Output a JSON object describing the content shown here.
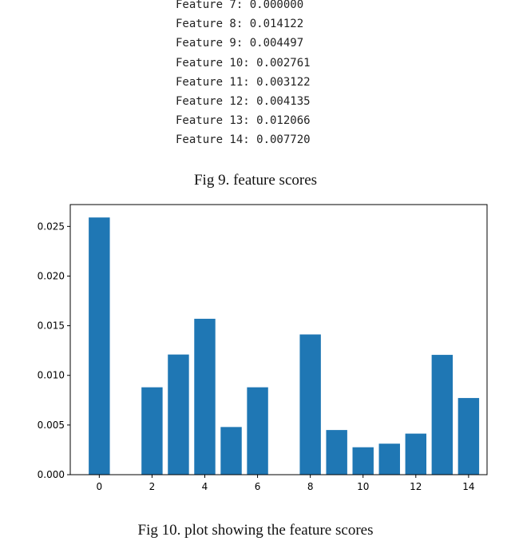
{
  "feature_scores_output": [
    "Feature 7: 0.000000",
    "Feature 8: 0.014122",
    "Feature 9: 0.004497",
    "Feature 10: 0.002761",
    "Feature 11: 0.003122",
    "Feature 12: 0.004135",
    "Feature 13: 0.012066",
    "Feature 14: 0.007720"
  ],
  "captions": {
    "fig9": "Fig 9.  feature scores",
    "fig10": "Fig 10. plot showing the feature scores"
  },
  "chart_data": {
    "type": "bar",
    "x": [
      0,
      1,
      2,
      3,
      4,
      5,
      6,
      7,
      8,
      9,
      10,
      11,
      12,
      13,
      14
    ],
    "values": [
      0.0259,
      0.0,
      0.0088,
      0.0121,
      0.0157,
      0.0048,
      0.0088,
      0.0,
      0.014122,
      0.004497,
      0.002761,
      0.003122,
      0.004135,
      0.012066,
      0.00772
    ],
    "xticks": [
      "0",
      "2",
      "4",
      "6",
      "8",
      "10",
      "12",
      "14"
    ],
    "yticks": [
      "0.000",
      "0.005",
      "0.010",
      "0.015",
      "0.020",
      "0.025"
    ],
    "ylim": [
      0,
      0.0272
    ],
    "xlim": [
      -1.1,
      14.7
    ],
    "title": "",
    "xlabel": "",
    "ylabel": "",
    "bar_color": "#1f77b4",
    "grid": false
  }
}
